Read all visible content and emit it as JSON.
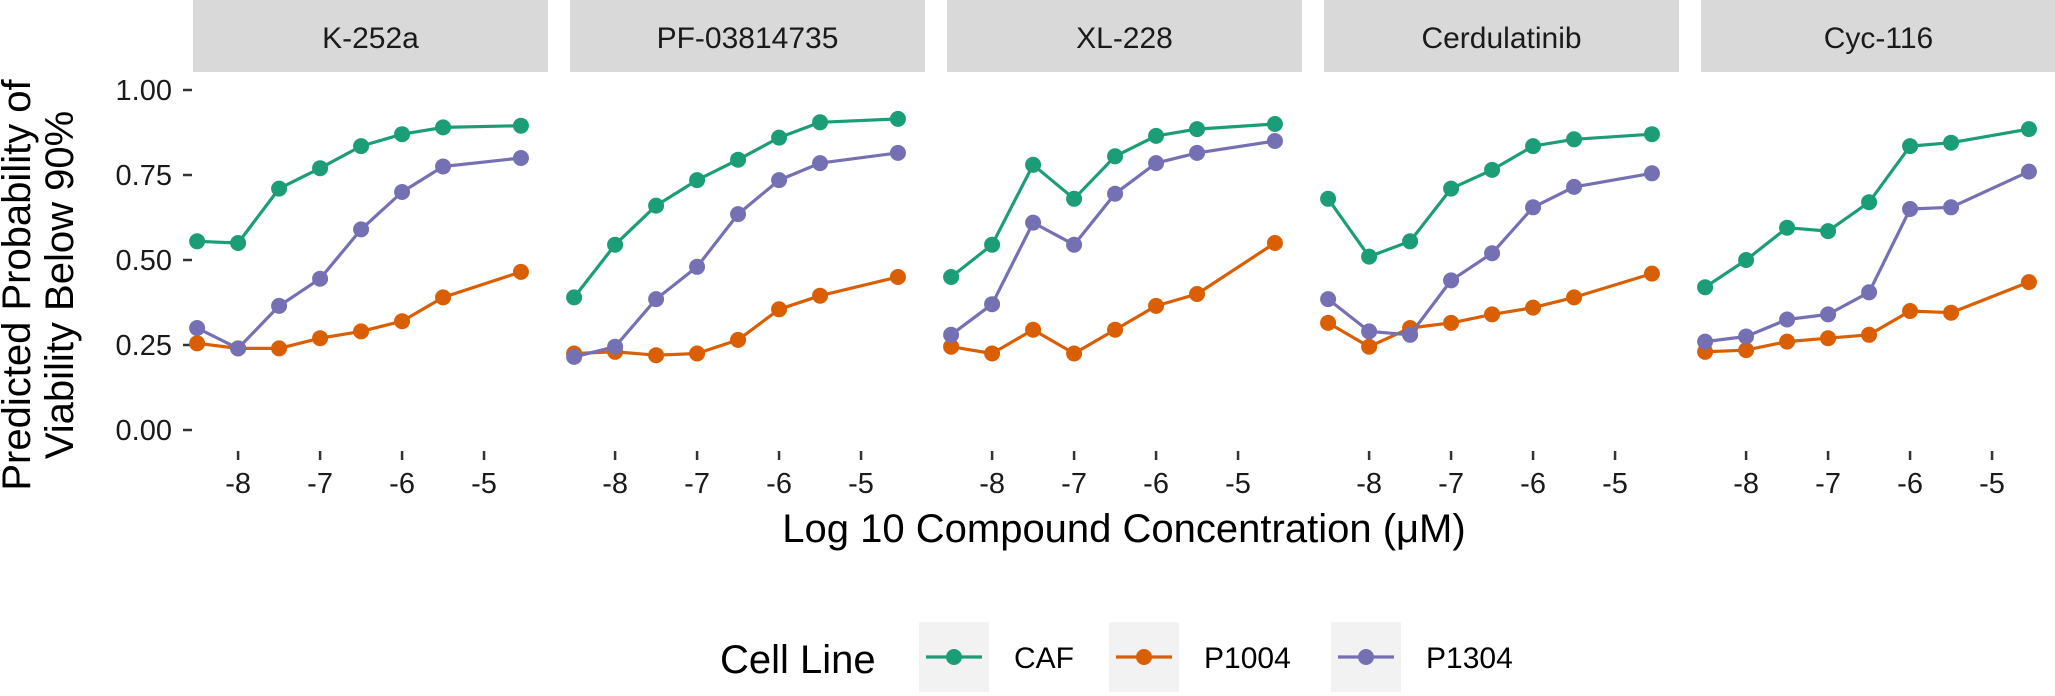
{
  "chart_data": {
    "type": "line",
    "xlabel": "Log 10 Compound Concentration (μM)",
    "ylabel_lines": [
      "Predicted Probability of",
      "Viability Below 90%"
    ],
    "ylim": [
      0,
      1
    ],
    "yticks": [
      0.0,
      0.25,
      0.5,
      0.75,
      1.0
    ],
    "ytick_labels": [
      "0.00",
      "0.25",
      "0.50",
      "0.75",
      "1.00"
    ],
    "xlim": [
      -8.55,
      -4.22
    ],
    "xticks": [
      -8,
      -7,
      -6,
      -5
    ],
    "xtick_labels": [
      "-8",
      "-7",
      "-6",
      "-5"
    ],
    "legend": {
      "title": "Cell Line",
      "position": "bottom",
      "entries": [
        {
          "name": "CAF",
          "color": "#1b9e77"
        },
        {
          "name": "P1004",
          "color": "#d95f02"
        },
        {
          "name": "P1304",
          "color": "#7570b3"
        }
      ]
    },
    "series_colors": {
      "CAF": "#1b9e77",
      "P1004": "#d95f02",
      "P1304": "#7570b3"
    },
    "strip_background": "#d9d9d9",
    "panels": [
      {
        "title": "K-252a",
        "series": [
          {
            "name": "CAF",
            "x": [
              -8.5,
              -8.0,
              -7.5,
              -7.0,
              -6.5,
              -6.0,
              -5.5,
              -4.55
            ],
            "y": [
              0.555,
              0.55,
              0.71,
              0.77,
              0.835,
              0.87,
              0.89,
              0.895
            ]
          },
          {
            "name": "P1004",
            "x": [
              -8.5,
              -8.0,
              -7.5,
              -7.0,
              -6.5,
              -6.0,
              -5.5,
              -4.55
            ],
            "y": [
              0.255,
              0.24,
              0.24,
              0.27,
              0.29,
              0.32,
              0.39,
              0.465
            ]
          },
          {
            "name": "P1304",
            "x": [
              -8.5,
              -8.0,
              -7.5,
              -7.0,
              -6.5,
              -6.0,
              -5.5,
              -4.55
            ],
            "y": [
              0.3,
              0.24,
              0.365,
              0.445,
              0.59,
              0.7,
              0.775,
              0.8
            ]
          }
        ]
      },
      {
        "title": "PF-03814735",
        "series": [
          {
            "name": "CAF",
            "x": [
              -8.5,
              -8.0,
              -7.5,
              -7.0,
              -6.5,
              -6.0,
              -5.5,
              -4.55
            ],
            "y": [
              0.39,
              0.545,
              0.66,
              0.735,
              0.795,
              0.86,
              0.905,
              0.915
            ]
          },
          {
            "name": "P1004",
            "x": [
              -8.5,
              -8.0,
              -7.5,
              -7.0,
              -6.5,
              -6.0,
              -5.5,
              -4.55
            ],
            "y": [
              0.225,
              0.23,
              0.22,
              0.225,
              0.265,
              0.355,
              0.395,
              0.45
            ]
          },
          {
            "name": "P1304",
            "x": [
              -8.5,
              -8.0,
              -7.5,
              -7.0,
              -6.5,
              -6.0,
              -5.5,
              -4.55
            ],
            "y": [
              0.215,
              0.245,
              0.385,
              0.48,
              0.635,
              0.735,
              0.785,
              0.815
            ]
          }
        ]
      },
      {
        "title": "XL-228",
        "series": [
          {
            "name": "CAF",
            "x": [
              -8.5,
              -8.0,
              -7.5,
              -7.0,
              -6.5,
              -6.0,
              -5.5,
              -4.55
            ],
            "y": [
              0.45,
              0.545,
              0.78,
              0.68,
              0.805,
              0.865,
              0.885,
              0.9
            ]
          },
          {
            "name": "P1004",
            "x": [
              -8.5,
              -8.0,
              -7.5,
              -7.0,
              -6.5,
              -6.0,
              -5.5,
              -4.55
            ],
            "y": [
              0.245,
              0.225,
              0.295,
              0.225,
              0.295,
              0.365,
              0.4,
              0.55
            ]
          },
          {
            "name": "P1304",
            "x": [
              -8.5,
              -8.0,
              -7.5,
              -7.0,
              -6.5,
              -6.0,
              -5.5,
              -4.55
            ],
            "y": [
              0.28,
              0.37,
              0.61,
              0.545,
              0.695,
              0.785,
              0.815,
              0.85
            ]
          }
        ]
      },
      {
        "title": "Cerdulatinib",
        "series": [
          {
            "name": "CAF",
            "x": [
              -8.5,
              -8.0,
              -7.5,
              -7.0,
              -6.5,
              -6.0,
              -5.5,
              -4.55
            ],
            "y": [
              0.68,
              0.51,
              0.555,
              0.71,
              0.765,
              0.835,
              0.855,
              0.87
            ]
          },
          {
            "name": "P1004",
            "x": [
              -8.5,
              -8.0,
              -7.5,
              -7.0,
              -6.5,
              -6.0,
              -5.5,
              -4.55
            ],
            "y": [
              0.315,
              0.245,
              0.3,
              0.315,
              0.34,
              0.36,
              0.39,
              0.46
            ]
          },
          {
            "name": "P1304",
            "x": [
              -8.5,
              -8.0,
              -7.5,
              -7.0,
              -6.5,
              -6.0,
              -5.5,
              -4.55
            ],
            "y": [
              0.385,
              0.29,
              0.28,
              0.44,
              0.52,
              0.655,
              0.715,
              0.755
            ]
          }
        ]
      },
      {
        "title": "Cyc-116",
        "series": [
          {
            "name": "CAF",
            "x": [
              -8.5,
              -8.0,
              -7.5,
              -7.0,
              -6.5,
              -6.0,
              -5.5,
              -4.55
            ],
            "y": [
              0.42,
              0.5,
              0.595,
              0.585,
              0.67,
              0.835,
              0.845,
              0.885
            ]
          },
          {
            "name": "P1004",
            "x": [
              -8.5,
              -8.0,
              -7.5,
              -7.0,
              -6.5,
              -6.0,
              -5.5,
              -4.55
            ],
            "y": [
              0.23,
              0.235,
              0.26,
              0.27,
              0.28,
              0.35,
              0.345,
              0.435
            ]
          },
          {
            "name": "P1304",
            "x": [
              -8.5,
              -8.0,
              -7.5,
              -7.0,
              -6.5,
              -6.0,
              -5.5,
              -4.55
            ],
            "y": [
              0.26,
              0.275,
              0.325,
              0.34,
              0.405,
              0.65,
              0.655,
              0.76
            ]
          }
        ]
      }
    ]
  }
}
